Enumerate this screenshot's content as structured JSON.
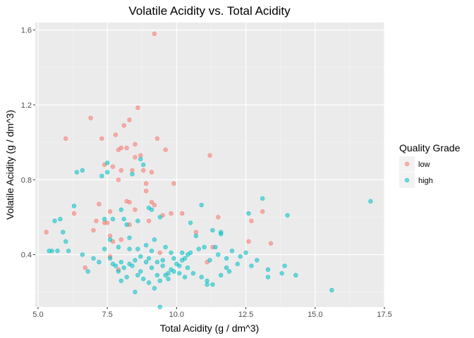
{
  "chart_data": {
    "type": "scatter",
    "title": "Volatile Acidity vs. Total Acidity",
    "xlabel": "Total Acidity (g / dm^3)",
    "ylabel": "Volatile Acidity (g / dm^3)",
    "xlim": [
      4.9,
      17.5
    ],
    "ylim": [
      0.12,
      1.64
    ],
    "x_ticks": [
      5.0,
      7.5,
      10.0,
      12.5,
      15.0,
      17.5
    ],
    "x_tick_labels": [
      "5.0",
      "7.5",
      "10.0",
      "12.5",
      "15.0",
      "17.5"
    ],
    "y_ticks": [
      0.4,
      0.8,
      1.2,
      1.6
    ],
    "y_tick_labels": [
      "0.4",
      "0.8",
      "1.2",
      "1.6"
    ],
    "grid": true,
    "legend": {
      "title": "Quality Grade",
      "position": "right"
    },
    "series": [
      {
        "name": "low",
        "color": "#F8766D",
        "points": [
          [
            9.2,
            1.58
          ],
          [
            8.6,
            1.185
          ],
          [
            6.9,
            1.13
          ],
          [
            8.3,
            1.12
          ],
          [
            8.1,
            1.09
          ],
          [
            7.8,
            1.04
          ],
          [
            7.3,
            1.02
          ],
          [
            9.3,
            1.02
          ],
          [
            6.0,
            1.02
          ],
          [
            8.5,
            0.99
          ],
          [
            8.2,
            0.97
          ],
          [
            8.0,
            0.97
          ],
          [
            7.9,
            0.96
          ],
          [
            9.6,
            0.96
          ],
          [
            11.2,
            0.93
          ],
          [
            8.7,
            0.93
          ],
          [
            8.5,
            0.92
          ],
          [
            7.4,
            0.88
          ],
          [
            7.7,
            0.87
          ],
          [
            8.0,
            0.85
          ],
          [
            8.8,
            0.85
          ],
          [
            9.1,
            0.84
          ],
          [
            8.4,
            0.85
          ],
          [
            7.9,
            0.8
          ],
          [
            8.9,
            0.78
          ],
          [
            9.9,
            0.78
          ],
          [
            8.9,
            0.74
          ],
          [
            7.2,
            0.67
          ],
          [
            8.2,
            0.685
          ],
          [
            8.3,
            0.68
          ],
          [
            9.1,
            0.68
          ],
          [
            9.2,
            0.665
          ],
          [
            7.6,
            0.63
          ],
          [
            8.5,
            0.64
          ],
          [
            9.8,
            0.62
          ],
          [
            6.3,
            0.62
          ],
          [
            9.5,
            0.61
          ],
          [
            11.5,
            0.6
          ],
          [
            10.2,
            0.62
          ],
          [
            12.7,
            0.58
          ],
          [
            7.4,
            0.57
          ],
          [
            7.1,
            0.58
          ],
          [
            7.5,
            0.57
          ],
          [
            8.3,
            0.56
          ],
          [
            9.0,
            0.58
          ],
          [
            13.1,
            0.63
          ],
          [
            7.0,
            0.53
          ],
          [
            7.6,
            0.5
          ],
          [
            5.3,
            0.52
          ],
          [
            10.7,
            0.52
          ],
          [
            8.0,
            0.48
          ],
          [
            7.7,
            0.47
          ],
          [
            12.6,
            0.47
          ],
          [
            13.4,
            0.46
          ],
          [
            9.4,
            0.41
          ],
          [
            11.3,
            0.44
          ],
          [
            7.6,
            0.39
          ],
          [
            6.7,
            0.33
          ],
          [
            7.9,
            0.32
          ],
          [
            11.1,
            0.36
          ]
        ]
      },
      {
        "name": "high",
        "color": "#00BFC4",
        "points": [
          [
            17.0,
            0.685
          ],
          [
            15.6,
            0.21
          ],
          [
            14.3,
            0.29
          ],
          [
            13.9,
            0.34
          ],
          [
            13.1,
            0.7
          ],
          [
            14.0,
            0.61
          ],
          [
            13.8,
            0.3
          ],
          [
            13.3,
            0.28
          ],
          [
            12.9,
            0.37
          ],
          [
            12.6,
            0.62
          ],
          [
            12.5,
            0.41
          ],
          [
            12.3,
            0.39
          ],
          [
            12.0,
            0.42
          ],
          [
            11.9,
            0.31
          ],
          [
            11.6,
            0.52
          ],
          [
            11.4,
            0.44
          ],
          [
            11.2,
            0.37
          ],
          [
            10.9,
            0.665
          ],
          [
            10.7,
            0.5
          ],
          [
            10.5,
            0.41
          ],
          [
            10.3,
            0.28
          ],
          [
            10.1,
            0.34
          ],
          [
            9.9,
            0.38
          ],
          [
            9.7,
            0.3
          ],
          [
            9.5,
            0.37
          ],
          [
            9.4,
            0.12
          ],
          [
            9.3,
            0.29
          ],
          [
            9.1,
            0.33
          ],
          [
            8.9,
            0.36
          ],
          [
            8.7,
            0.31
          ],
          [
            8.5,
            0.37
          ],
          [
            8.3,
            0.35
          ],
          [
            8.2,
            0.28
          ],
          [
            8.0,
            0.36
          ],
          [
            7.8,
            0.34
          ],
          [
            7.6,
            0.38
          ],
          [
            7.4,
            0.43
          ],
          [
            7.2,
            0.36
          ],
          [
            7.0,
            0.38
          ],
          [
            6.8,
            0.31
          ],
          [
            6.6,
            0.4
          ],
          [
            6.4,
            0.84
          ],
          [
            6.6,
            0.85
          ],
          [
            6.3,
            0.66
          ],
          [
            6.0,
            0.47
          ],
          [
            5.8,
            0.59
          ],
          [
            5.6,
            0.58
          ],
          [
            5.5,
            0.42
          ],
          [
            5.4,
            0.42
          ],
          [
            5.7,
            0.42
          ],
          [
            6.1,
            0.42
          ],
          [
            5.9,
            0.52
          ],
          [
            7.5,
            0.84
          ],
          [
            7.5,
            0.89
          ],
          [
            7.3,
            0.82
          ],
          [
            8.4,
            0.83
          ],
          [
            8.7,
            0.91
          ],
          [
            8.8,
            0.88
          ],
          [
            7.4,
            0.59
          ],
          [
            7.7,
            0.59
          ],
          [
            8.0,
            0.64
          ],
          [
            8.1,
            0.59
          ],
          [
            8.2,
            0.56
          ],
          [
            8.6,
            0.58
          ],
          [
            9.0,
            0.65
          ],
          [
            9.1,
            0.64
          ],
          [
            9.4,
            0.6
          ],
          [
            10.5,
            0.57
          ],
          [
            11.3,
            0.53
          ],
          [
            11.6,
            0.51
          ],
          [
            7.6,
            0.48
          ],
          [
            7.9,
            0.44
          ],
          [
            8.3,
            0.49
          ],
          [
            8.6,
            0.43
          ],
          [
            8.9,
            0.45
          ],
          [
            9.2,
            0.48
          ],
          [
            9.6,
            0.44
          ],
          [
            9.8,
            0.41
          ],
          [
            10.2,
            0.41
          ],
          [
            10.4,
            0.4
          ],
          [
            10.8,
            0.43
          ],
          [
            11.0,
            0.44
          ],
          [
            11.5,
            0.4
          ],
          [
            11.8,
            0.38
          ],
          [
            12.2,
            0.35
          ],
          [
            12.7,
            0.34
          ],
          [
            13.3,
            0.32
          ],
          [
            7.7,
            0.35
          ],
          [
            7.9,
            0.31
          ],
          [
            8.0,
            0.26
          ],
          [
            8.1,
            0.33
          ],
          [
            8.4,
            0.34
          ],
          [
            8.6,
            0.29
          ],
          [
            8.8,
            0.27
          ],
          [
            9.0,
            0.25
          ],
          [
            9.2,
            0.22
          ],
          [
            9.4,
            0.26
          ],
          [
            9.6,
            0.29
          ],
          [
            9.7,
            0.27
          ],
          [
            9.9,
            0.31
          ],
          [
            10.0,
            0.35
          ],
          [
            10.2,
            0.37
          ],
          [
            10.4,
            0.33
          ],
          [
            10.6,
            0.3
          ],
          [
            10.9,
            0.28
          ],
          [
            11.1,
            0.26
          ],
          [
            11.3,
            0.24
          ],
          [
            11.6,
            0.29
          ],
          [
            11.8,
            0.33
          ],
          [
            8.7,
            0.39
          ],
          [
            9.0,
            0.38
          ],
          [
            9.3,
            0.36
          ],
          [
            9.5,
            0.34
          ],
          [
            9.8,
            0.32
          ],
          [
            10.1,
            0.3
          ],
          [
            10.3,
            0.38
          ],
          [
            8.5,
            0.2
          ],
          [
            11.1,
            0.24
          ],
          [
            8.3,
            0.43
          ],
          [
            9.1,
            0.42
          ]
        ]
      }
    ]
  }
}
